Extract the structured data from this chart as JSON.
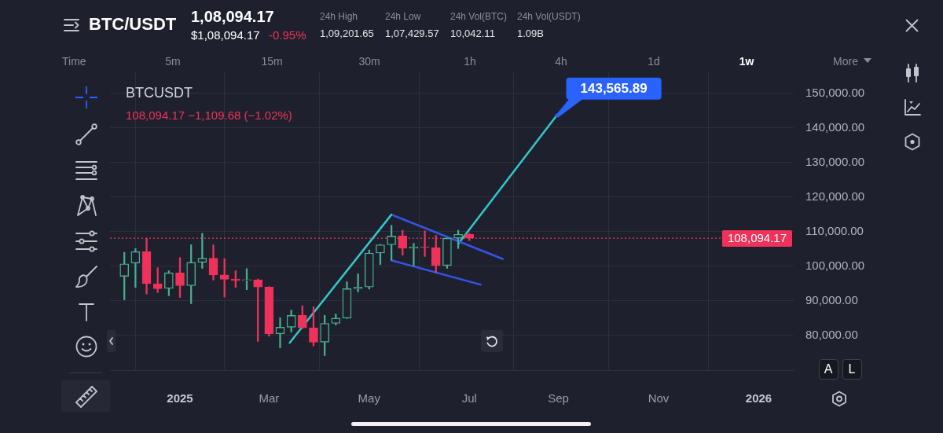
{
  "chart_data": {
    "type": "candlestick",
    "title": "BTC/USDT",
    "subtitle": "BTCUSDT",
    "x": [
      "2024-12-02",
      "2024-12-09",
      "2024-12-16",
      "2024-12-23",
      "2024-12-30",
      "2025-01-06",
      "2025-01-13",
      "2025-01-20",
      "2025-01-27",
      "2025-02-03",
      "2025-02-10",
      "2025-02-17",
      "2025-02-24",
      "2025-03-03",
      "2025-03-10",
      "2025-03-17",
      "2025-03-24",
      "2025-03-31",
      "2025-04-07",
      "2025-04-14",
      "2025-04-21",
      "2025-04-28",
      "2025-05-05",
      "2025-05-12",
      "2025-05-19",
      "2025-05-26",
      "2025-06-02",
      "2025-06-09",
      "2025-06-16",
      "2025-06-23",
      "2025-06-30",
      "2025-07-07"
    ],
    "ohlc": [
      [
        97100,
        104000,
        90300,
        100700
      ],
      [
        100900,
        105100,
        93900,
        104200
      ],
      [
        104200,
        108100,
        92000,
        95000
      ],
      [
        94900,
        99600,
        92400,
        93500
      ],
      [
        93600,
        98700,
        91500,
        98100
      ],
      [
        98100,
        102500,
        91000,
        94400
      ],
      [
        94400,
        106200,
        89200,
        101100
      ],
      [
        101100,
        109500,
        99400,
        102300
      ],
      [
        102300,
        106200,
        96000,
        97500
      ],
      [
        97500,
        102200,
        91100,
        96200
      ],
      [
        96300,
        98700,
        93900,
        95900
      ],
      [
        95900,
        99300,
        93200,
        96100
      ],
      [
        96100,
        96300,
        78300,
        94000
      ],
      [
        94000,
        94100,
        79800,
        80500
      ],
      [
        80500,
        85100,
        76400,
        82400
      ],
      [
        82400,
        87300,
        81000,
        85800
      ],
      [
        85800,
        88600,
        82000,
        82200
      ],
      [
        82200,
        88300,
        77000,
        78100
      ],
      [
        78100,
        85800,
        74200,
        83500
      ],
      [
        83500,
        86200,
        83000,
        85000
      ],
      [
        85000,
        95500,
        84900,
        93500
      ],
      [
        93500,
        97800,
        92600,
        94000
      ],
      [
        94000,
        104700,
        93400,
        103800
      ],
      [
        103800,
        106300,
        100500,
        106200
      ],
      [
        106200,
        111800,
        101700,
        108700
      ],
      [
        108700,
        110400,
        103200,
        105200
      ],
      [
        105200,
        106600,
        100200,
        105600
      ],
      [
        105600,
        110200,
        102800,
        105400
      ],
      [
        105400,
        108900,
        98100,
        100200
      ],
      [
        100200,
        108200,
        99400,
        108100
      ],
      [
        108100,
        110400,
        105100,
        109200
      ],
      [
        109200,
        109500,
        107400,
        108094.17
      ]
    ],
    "colors": [
      "#48af8c",
      "#48af8c",
      "#f0325a",
      "#f0325a",
      "#48af8c",
      "#f0325a",
      "#48af8c",
      "#48af8c",
      "#f0325a",
      "#f0325a",
      "#f0325a",
      "#48af8c",
      "#f0325a",
      "#f0325a",
      "#48af8c",
      "#48af8c",
      "#f0325a",
      "#f0325a",
      "#48af8c",
      "#48af8c",
      "#48af8c",
      "#48af8c",
      "#48af8c",
      "#48af8c",
      "#48af8c",
      "#f0325a",
      "#48af8c",
      "#f0325a",
      "#f0325a",
      "#48af8c",
      "#48af8c",
      "#f0325a"
    ],
    "series": [
      {
        "type": "line",
        "color": "#35c6c9",
        "x": [
          "2025-03-16",
          "2025-05-19"
        ],
        "values": [
          77900,
          114900
        ]
      },
      {
        "type": "line",
        "color": "#3553ec",
        "x": [
          "2025-05-19",
          "2025-07-28"
        ],
        "values": [
          114900,
          102100
        ]
      },
      {
        "type": "line",
        "color": "#3553ec",
        "x": [
          "2025-05-19",
          "2025-07-14"
        ],
        "values": [
          101700,
          94700
        ]
      },
      {
        "type": "line",
        "color": "#35c6c9",
        "x": [
          "2025-06-30",
          "2025-08-31"
        ],
        "values": [
          106400,
          143565.89
        ]
      }
    ],
    "xlim": [
      "2024-11-23",
      "2026-01-27"
    ],
    "ylim": [
      70000,
      156000
    ],
    "xticks": [
      {
        "value": "2025-01-06",
        "label": "2025"
      },
      {
        "value": "2025-03-03",
        "label": "Mar"
      },
      {
        "value": "2025-05-05",
        "label": "May"
      },
      {
        "value": "2025-07-07",
        "label": "Jul"
      },
      {
        "value": "2025-09-01",
        "label": "Sep"
      },
      {
        "value": "2025-11-03",
        "label": "Nov"
      },
      {
        "value": "2026-01-05",
        "label": "2026"
      }
    ],
    "yticks": [
      {
        "value": 80000,
        "label": "80,000.00"
      },
      {
        "value": 90000,
        "label": "90,000.00"
      },
      {
        "value": 100000,
        "label": "100,000.00"
      },
      {
        "value": 110000,
        "label": "110,000.00"
      },
      {
        "value": 120000,
        "label": "120,000.00"
      },
      {
        "value": 130000,
        "label": "130,000.00"
      },
      {
        "value": 140000,
        "label": "140,000.00"
      },
      {
        "value": 150000,
        "label": "150,000.00"
      }
    ],
    "grid": true,
    "ref_lines": [
      {
        "axis": "y",
        "value": 108094.17,
        "label": "108,094.17",
        "color": "#f0325a",
        "line_style": "dotted"
      }
    ],
    "annotations": [
      "1,08,094.17",
      "$1,08,094.17",
      "-0.95%",
      "24h High",
      "1,09,201.65",
      "24h Low",
      "1,07,429.57",
      "24h Vol(BTC)",
      "10,042.11",
      "24h Vol(USDT)",
      "1.09B",
      "Time",
      "5m",
      "15m",
      "30m",
      "1h",
      "4h",
      "1d",
      "1w",
      "More",
      "108,094.17 −1,109.68 (−1.02%)",
      "A",
      "L",
      {
        "text": "143,565.89",
        "x": "2025-08-31",
        "y": 143565.89
      }
    ]
  }
}
